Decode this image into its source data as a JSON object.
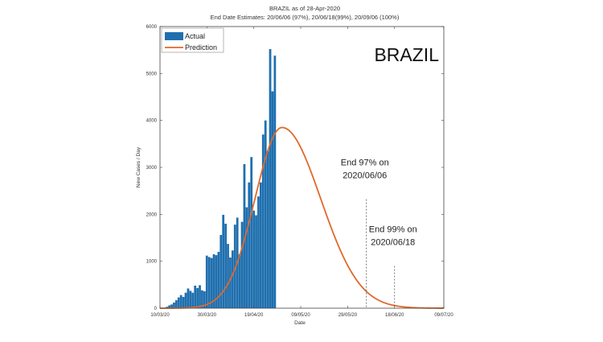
{
  "chart_data": {
    "type": "bar",
    "title": "BRAZIL as of 28-Apr-2020",
    "subtitle": "End Date Estimates: 20/06/06 (97%), 20/06/18(99%), 20/09/06 (100%)",
    "xlabel": "Date",
    "ylabel": "New Cases / Day",
    "ylim": [
      0,
      6000
    ],
    "yticks": [
      0,
      1000,
      2000,
      3000,
      4000,
      5000,
      6000
    ],
    "xlim": [
      "2020-03-10",
      "2020-07-09"
    ],
    "xticks": [
      {
        "date": "2020-03-10",
        "label": "10/03/20"
      },
      {
        "date": "2020-03-30",
        "label": "30/03/20"
      },
      {
        "date": "2020-04-19",
        "label": "19/04/20"
      },
      {
        "date": "2020-05-09",
        "label": "09/05/20"
      },
      {
        "date": "2020-05-29",
        "label": "29/05/20"
      },
      {
        "date": "2020-06-18",
        "label": "18/06/20"
      },
      {
        "date": "2020-07-09",
        "label": "09/07/20"
      }
    ],
    "grid": false,
    "legend_position": "top-left",
    "country_label": "BRAZIL",
    "series": [
      {
        "name": "Actual",
        "type": "bar",
        "color": "#1f6fae",
        "dates": [
          "2020-03-13",
          "2020-03-14",
          "2020-03-15",
          "2020-03-16",
          "2020-03-17",
          "2020-03-18",
          "2020-03-19",
          "2020-03-20",
          "2020-03-21",
          "2020-03-22",
          "2020-03-23",
          "2020-03-24",
          "2020-03-25",
          "2020-03-26",
          "2020-03-27",
          "2020-03-28",
          "2020-03-29",
          "2020-03-30",
          "2020-03-31",
          "2020-04-01",
          "2020-04-02",
          "2020-04-03",
          "2020-04-04",
          "2020-04-05",
          "2020-04-06",
          "2020-04-07",
          "2020-04-08",
          "2020-04-09",
          "2020-04-10",
          "2020-04-11",
          "2020-04-12",
          "2020-04-13",
          "2020-04-14",
          "2020-04-15",
          "2020-04-16",
          "2020-04-17",
          "2020-04-18",
          "2020-04-19",
          "2020-04-20",
          "2020-04-21",
          "2020-04-22",
          "2020-04-23",
          "2020-04-24",
          "2020-04-25",
          "2020-04-26",
          "2020-04-27",
          "2020-04-28"
        ],
        "values": [
          30,
          60,
          80,
          120,
          170,
          230,
          280,
          240,
          330,
          420,
          370,
          330,
          480,
          430,
          490,
          380,
          360,
          1120,
          1090,
          1070,
          1150,
          1130,
          1200,
          1560,
          1990,
          1800,
          1370,
          1080,
          1230,
          1780,
          1930,
          1150,
          1840,
          3070,
          2150,
          2680,
          3220,
          2080,
          1980,
          2380,
          2680,
          3700,
          4000,
          3350,
          5520,
          4620,
          5380
        ]
      },
      {
        "name": "Prediction",
        "type": "line",
        "color": "#e0692b",
        "peak_date": "2020-05-01",
        "peak_value": 3850,
        "rise_width_days": 11.5,
        "fall_width_days": 16.5
      }
    ],
    "annotations": [
      {
        "line1": "End 97% on",
        "line2": "2020/06/06",
        "date": "2020-06-06",
        "line_top": 2320
      },
      {
        "line1": "End 99% on",
        "line2": "2020/06/18",
        "date": "2020-06-18",
        "line_top": 900
      }
    ]
  }
}
